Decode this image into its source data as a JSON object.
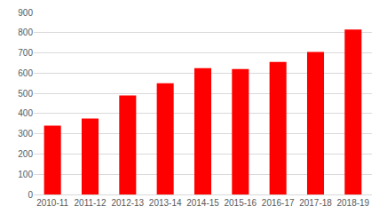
{
  "chart_data": {
    "type": "bar",
    "categories": [
      "2010-11",
      "2011-12",
      "2012-13",
      "2013-14",
      "2014-15",
      "2015-16",
      "2016-17",
      "2017-18",
      "2018-19"
    ],
    "values": [
      340,
      375,
      490,
      550,
      625,
      620,
      655,
      705,
      815
    ],
    "color": "#ff0000",
    "ylim": [
      0,
      900
    ],
    "yticks": [
      0,
      100,
      200,
      300,
      400,
      500,
      600,
      700,
      800,
      900
    ],
    "grid": true
  }
}
